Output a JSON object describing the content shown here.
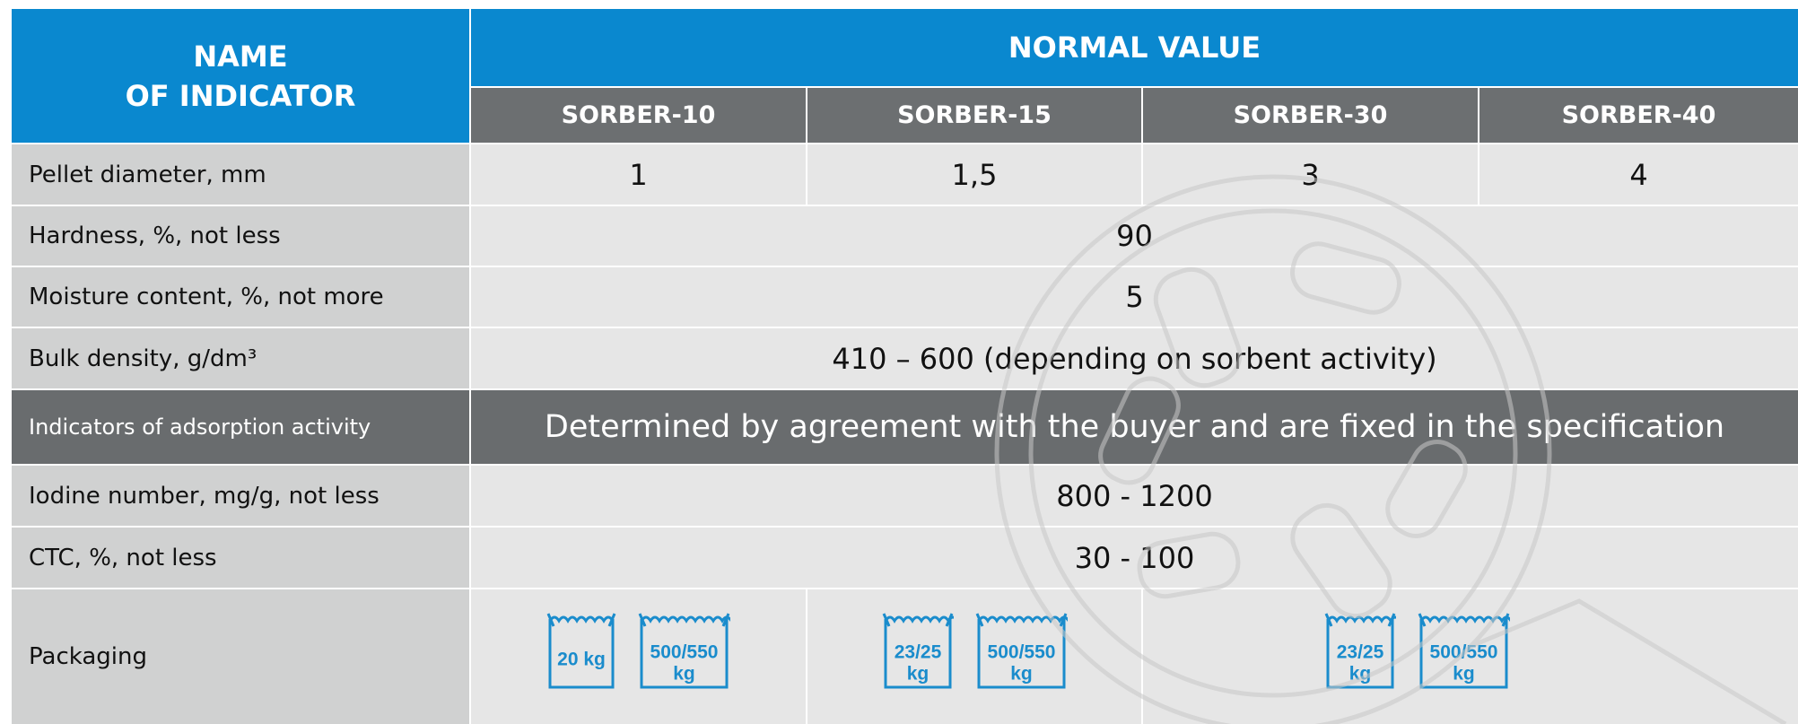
{
  "header": {
    "name_of_indicator": [
      "NAME",
      "OF INDICATOR"
    ],
    "normal_value": "NORMAL VALUE",
    "products": [
      "SORBER-10",
      "SORBER-15",
      "SORBER-30",
      "SORBER-40"
    ]
  },
  "properties": [
    {
      "label": "Pellet diameter, mm",
      "values": [
        "1",
        "1,5",
        "3",
        "4"
      ]
    },
    {
      "label": "Hardness, %, not less",
      "value": "90"
    },
    {
      "label": "Moisture content, %, not more",
      "value": "5"
    },
    {
      "label": "Bulk density, g/dm³",
      "value": "410 – 600 (depending on sorbent activity)"
    }
  ],
  "adsorption_activity": {
    "label": "Indicators of adsorption activity",
    "note": "Determined by agreement with the buyer and are fixed in the specification",
    "indicators": [
      {
        "label": "Iodine number, mg/g, not less",
        "value": "800 - 1200"
      },
      {
        "label": "CTC, %, not less",
        "value": "30 - 100"
      }
    ]
  },
  "packaging": {
    "label": "Packaging",
    "groups": [
      [
        [
          "20 kg"
        ],
        [
          "500/550",
          "kg"
        ]
      ],
      [
        [
          "23/25",
          "kg"
        ],
        [
          "500/550",
          "kg"
        ]
      ],
      [
        [
          "23/25",
          "kg"
        ],
        [
          "500/550",
          "kg"
        ]
      ]
    ]
  }
}
